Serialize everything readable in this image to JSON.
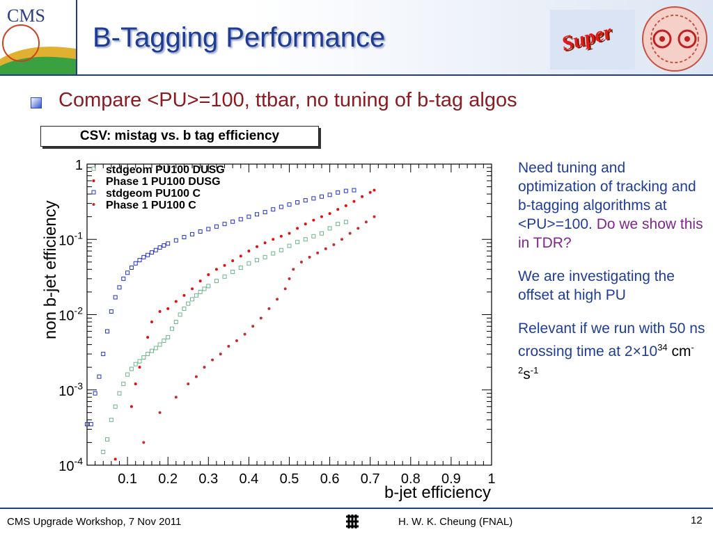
{
  "slide": {
    "title": "B-Tagging Performance",
    "bullet": "Compare <PU>=100, ttbar, no tuning of b-tag algos",
    "caption": "CSV: mistag vs. b tag efficiency",
    "logos": {
      "cms": "CMS",
      "super": "Super"
    },
    "notes": {
      "p1a": "Need tuning and optimization of tracking and b-tagging algorithms at <PU>=100.",
      "p1b": "Do we show this in TDR?",
      "p2": "We are investigating the offset at high PU",
      "p3": "Relevant if we run with 50 ns crossing time at 2×10",
      "p3_exp1": "34",
      "p3_unit1": " cm",
      "p3_exp2": "-2",
      "p3_unit2": "s",
      "p3_exp3": "-1"
    },
    "footer": {
      "left": "CMS Upgrade Workshop, 7 Nov 2011",
      "center": "H. W. K. Cheung (FNAL)",
      "page": "12"
    }
  },
  "colors": {
    "title": "#1f3c95",
    "bullet": "#8b1b20",
    "notes": "#1f3d96",
    "purple": "#80268c",
    "rule": "#1f3b8c"
  },
  "chart_data": {
    "type": "scatter",
    "xlabel": "b-jet efficiency",
    "ylabel": "non b-jet efficiency",
    "xlim": [
      0,
      1
    ],
    "ylim": [
      0.0001,
      1
    ],
    "yscale": "log",
    "x_ticks": [
      "0.1",
      "0.2",
      "0.3",
      "0.4",
      "0.5",
      "0.6",
      "0.7",
      "0.8",
      "0.9",
      "1"
    ],
    "y_ticks": [
      {
        "base": "1",
        "exp": ""
      },
      {
        "base": "10",
        "exp": "-1"
      },
      {
        "base": "10",
        "exp": "-2"
      },
      {
        "base": "10",
        "exp": "-3"
      },
      {
        "base": "10",
        "exp": "-4"
      }
    ],
    "legend_position": "top-left",
    "series": [
      {
        "name": "stdgeom PU100 DUSG",
        "color": "#6cb48a",
        "marker": "open-square",
        "points": [
          [
            0.04,
            0.00015
          ],
          [
            0.05,
            0.00022
          ],
          [
            0.06,
            0.0004
          ],
          [
            0.07,
            0.0006
          ],
          [
            0.08,
            0.0009
          ],
          [
            0.09,
            0.0012
          ],
          [
            0.1,
            0.0016
          ],
          [
            0.11,
            0.0019
          ],
          [
            0.12,
            0.0022
          ],
          [
            0.13,
            0.0024
          ],
          [
            0.14,
            0.0027
          ],
          [
            0.15,
            0.003
          ],
          [
            0.16,
            0.0033
          ],
          [
            0.17,
            0.0036
          ],
          [
            0.18,
            0.004
          ],
          [
            0.19,
            0.0045
          ],
          [
            0.2,
            0.005
          ],
          [
            0.21,
            0.0065
          ],
          [
            0.22,
            0.008
          ],
          [
            0.23,
            0.01
          ],
          [
            0.24,
            0.012
          ],
          [
            0.25,
            0.014
          ],
          [
            0.26,
            0.016
          ],
          [
            0.27,
            0.018
          ],
          [
            0.28,
            0.02
          ],
          [
            0.29,
            0.022
          ],
          [
            0.3,
            0.024
          ],
          [
            0.32,
            0.028
          ],
          [
            0.34,
            0.032
          ],
          [
            0.36,
            0.037
          ],
          [
            0.38,
            0.042
          ],
          [
            0.4,
            0.048
          ],
          [
            0.42,
            0.053
          ],
          [
            0.44,
            0.058
          ],
          [
            0.46,
            0.065
          ],
          [
            0.48,
            0.072
          ],
          [
            0.5,
            0.082
          ],
          [
            0.52,
            0.092
          ],
          [
            0.54,
            0.1
          ],
          [
            0.56,
            0.11
          ],
          [
            0.58,
            0.12
          ],
          [
            0.6,
            0.14
          ],
          [
            0.62,
            0.16
          ],
          [
            0.64,
            0.17
          ]
        ]
      },
      {
        "name": "Phase 1 PU100 DUSG",
        "color": "#e01010",
        "marker": "dot",
        "points": [
          [
            0.07,
            0.00012
          ],
          [
            0.11,
            0.0006
          ],
          [
            0.12,
            0.0012
          ],
          [
            0.13,
            0.002
          ],
          [
            0.15,
            0.005
          ],
          [
            0.16,
            0.008
          ],
          [
            0.18,
            0.011
          ],
          [
            0.2,
            0.012
          ],
          [
            0.22,
            0.015
          ],
          [
            0.24,
            0.018
          ],
          [
            0.26,
            0.022
          ],
          [
            0.28,
            0.028
          ],
          [
            0.3,
            0.034
          ],
          [
            0.32,
            0.04
          ],
          [
            0.34,
            0.045
          ],
          [
            0.36,
            0.052
          ],
          [
            0.38,
            0.06
          ],
          [
            0.4,
            0.07
          ],
          [
            0.42,
            0.08
          ],
          [
            0.44,
            0.09
          ],
          [
            0.46,
            0.1
          ],
          [
            0.48,
            0.11
          ],
          [
            0.5,
            0.12
          ],
          [
            0.52,
            0.14
          ],
          [
            0.54,
            0.16
          ],
          [
            0.56,
            0.18
          ],
          [
            0.58,
            0.2
          ],
          [
            0.6,
            0.22
          ],
          [
            0.62,
            0.25
          ],
          [
            0.64,
            0.28
          ],
          [
            0.66,
            0.32
          ],
          [
            0.68,
            0.37
          ],
          [
            0.7,
            0.42
          ],
          [
            0.71,
            0.45
          ]
        ]
      },
      {
        "name": "stdgeom PU100 C",
        "color": "#2030d0",
        "marker": "open-square",
        "points": [
          [
            0.0,
            0.00035
          ],
          [
            0.01,
            0.00035
          ],
          [
            0.02,
            0.0009
          ],
          [
            0.03,
            0.0015
          ],
          [
            0.04,
            0.003
          ],
          [
            0.05,
            0.006
          ],
          [
            0.06,
            0.011
          ],
          [
            0.07,
            0.017
          ],
          [
            0.08,
            0.023
          ],
          [
            0.09,
            0.03
          ],
          [
            0.1,
            0.036
          ],
          [
            0.11,
            0.042
          ],
          [
            0.12,
            0.048
          ],
          [
            0.13,
            0.053
          ],
          [
            0.14,
            0.058
          ],
          [
            0.15,
            0.062
          ],
          [
            0.16,
            0.067
          ],
          [
            0.17,
            0.072
          ],
          [
            0.18,
            0.078
          ],
          [
            0.19,
            0.083
          ],
          [
            0.2,
            0.088
          ],
          [
            0.22,
            0.097
          ],
          [
            0.24,
            0.107
          ],
          [
            0.26,
            0.117
          ],
          [
            0.28,
            0.127
          ],
          [
            0.3,
            0.137
          ],
          [
            0.32,
            0.148
          ],
          [
            0.34,
            0.16
          ],
          [
            0.36,
            0.172
          ],
          [
            0.38,
            0.185
          ],
          [
            0.4,
            0.2
          ],
          [
            0.42,
            0.215
          ],
          [
            0.44,
            0.23
          ],
          [
            0.46,
            0.25
          ],
          [
            0.48,
            0.27
          ],
          [
            0.5,
            0.29
          ],
          [
            0.52,
            0.31
          ],
          [
            0.54,
            0.33
          ],
          [
            0.56,
            0.35
          ],
          [
            0.58,
            0.37
          ],
          [
            0.6,
            0.39
          ],
          [
            0.62,
            0.42
          ],
          [
            0.64,
            0.44
          ],
          [
            0.66,
            0.45
          ]
        ]
      },
      {
        "name": "Phase 1 PU100 C",
        "color": "#c03030",
        "marker": "dot",
        "points": [
          [
            0.14,
            0.0002
          ],
          [
            0.18,
            0.0005
          ],
          [
            0.22,
            0.0008
          ],
          [
            0.25,
            0.0012
          ],
          [
            0.27,
            0.0015
          ],
          [
            0.29,
            0.002
          ],
          [
            0.31,
            0.0025
          ],
          [
            0.33,
            0.003
          ],
          [
            0.35,
            0.0038
          ],
          [
            0.37,
            0.0045
          ],
          [
            0.39,
            0.0055
          ],
          [
            0.41,
            0.007
          ],
          [
            0.43,
            0.009
          ],
          [
            0.45,
            0.012
          ],
          [
            0.47,
            0.016
          ],
          [
            0.49,
            0.022
          ],
          [
            0.5,
            0.03
          ],
          [
            0.51,
            0.04
          ],
          [
            0.53,
            0.05
          ],
          [
            0.55,
            0.058
          ],
          [
            0.57,
            0.066
          ],
          [
            0.59,
            0.075
          ],
          [
            0.61,
            0.085
          ],
          [
            0.63,
            0.1
          ],
          [
            0.65,
            0.12
          ],
          [
            0.67,
            0.14
          ],
          [
            0.69,
            0.17
          ],
          [
            0.71,
            0.2
          ]
        ]
      }
    ]
  }
}
